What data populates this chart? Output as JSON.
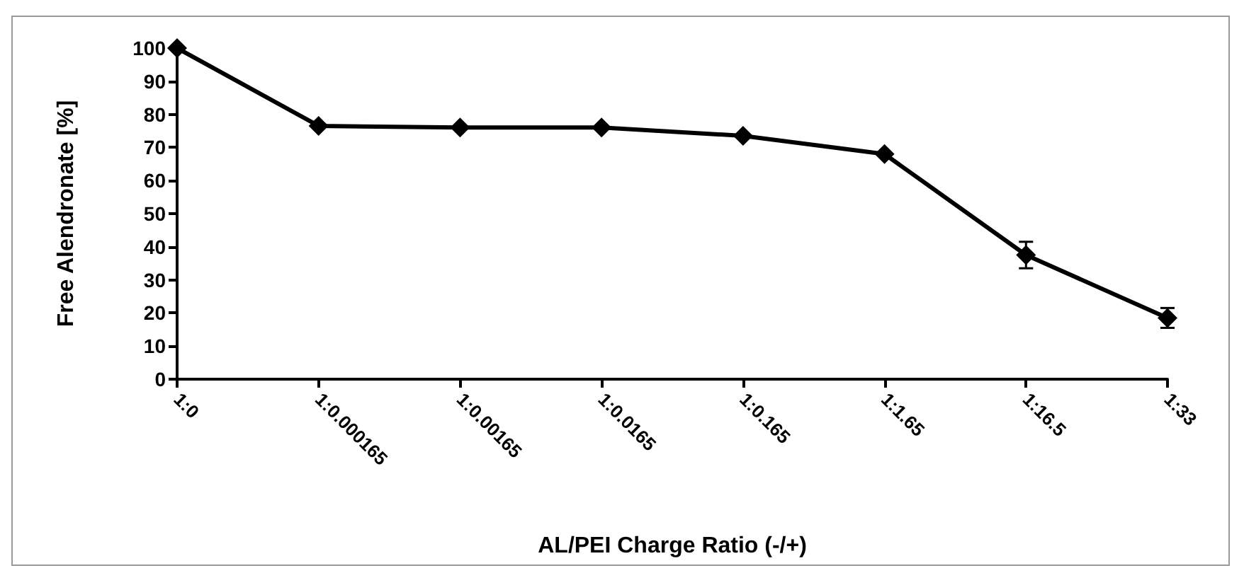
{
  "chart_data": {
    "type": "line",
    "xlabel": "AL/PEI Charge Ratio (-/+)",
    "ylabel": "Free Alendronate [%]",
    "categories": [
      "1:0",
      "1:0.000165",
      "1:0.00165",
      "1:0.0165",
      "1:0.165",
      "1:1.65",
      "1:16.5",
      "1:33"
    ],
    "series": [
      {
        "color": "#000000",
        "values": [
          100,
          76.5,
          76,
          76,
          73.5,
          68,
          37.5,
          18.5
        ],
        "errors": [
          null,
          null,
          null,
          null,
          null,
          null,
          4,
          3
        ]
      }
    ],
    "ylim": [
      0,
      100
    ],
    "yticks": [
      0,
      10,
      20,
      30,
      40,
      50,
      60,
      70,
      80,
      90,
      100
    ],
    "grid": false,
    "marker": "diamond",
    "line_style": "solid"
  }
}
